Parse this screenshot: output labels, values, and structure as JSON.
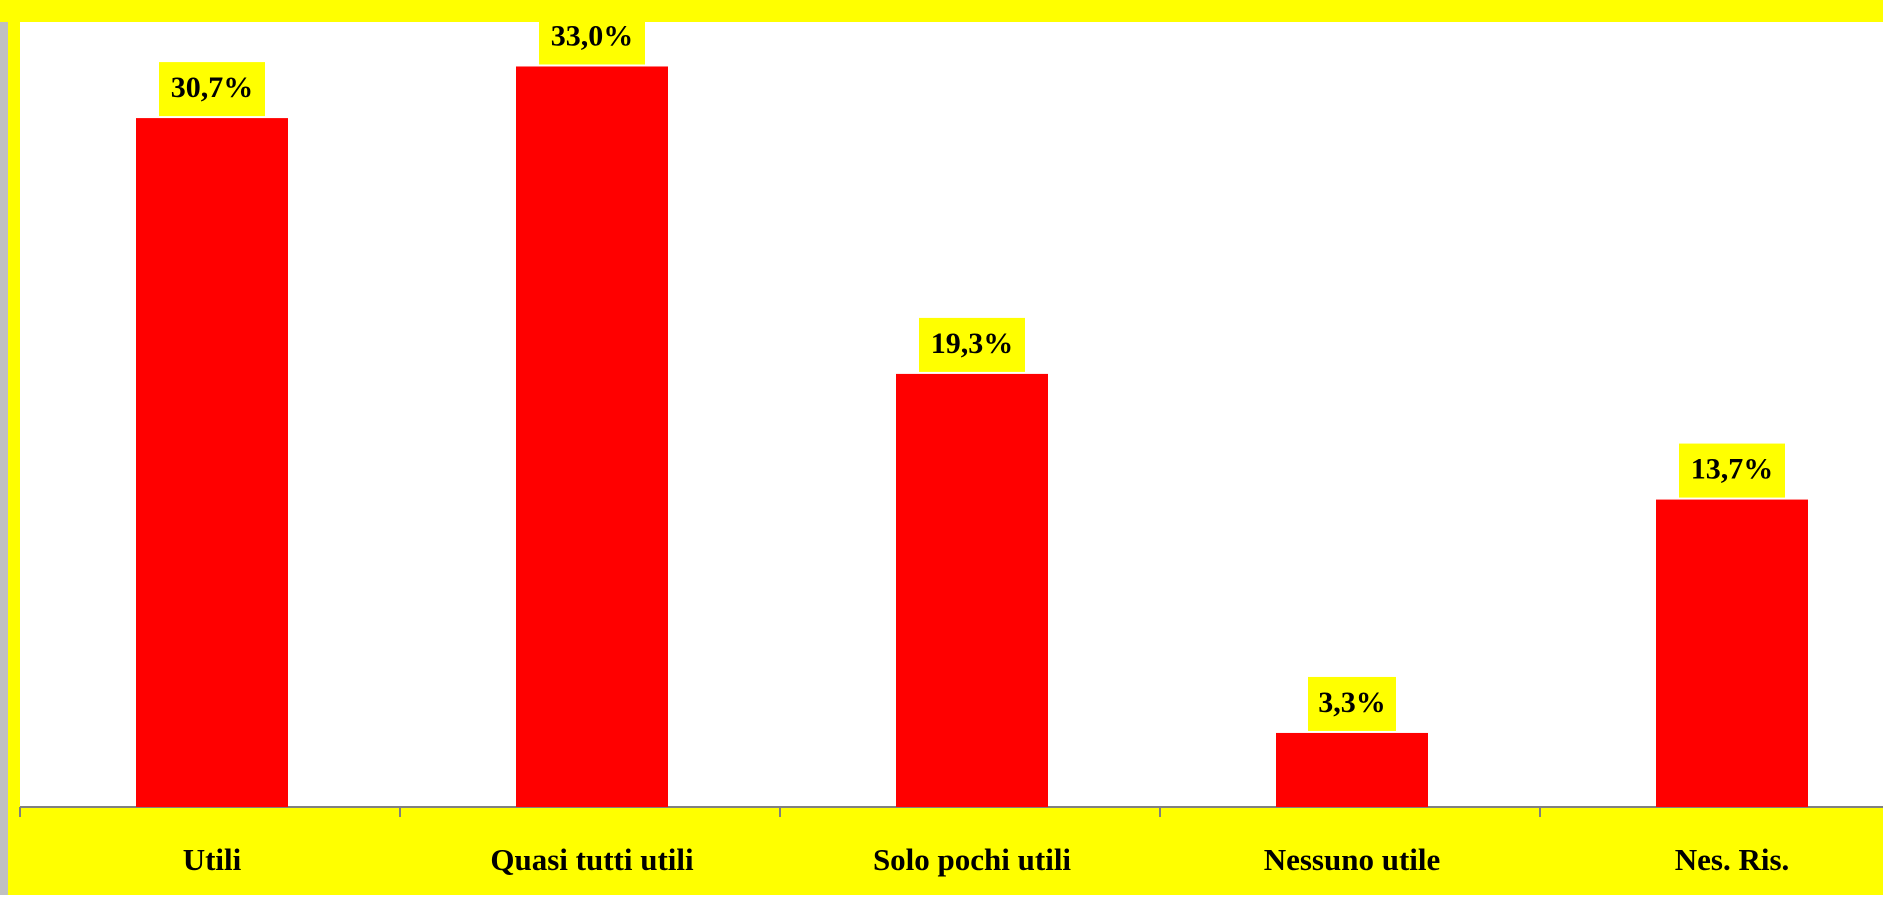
{
  "chart_data": {
    "type": "bar",
    "categories": [
      "Utili",
      "Quasi tutti utili",
      "Solo pochi utili",
      "Nessuno utile",
      "Nes. Ris."
    ],
    "values": [
      30.7,
      33.0,
      19.3,
      3.3,
      13.7
    ],
    "value_labels": [
      "30,7%",
      "33,0%",
      "19,3%",
      "3,3%",
      "13,7%"
    ],
    "ylim": [
      0,
      36
    ],
    "grid": false,
    "legend": "none",
    "colors": {
      "bar": "#ff0000",
      "label_background": "#ffff00",
      "axis_band": "#ffff00",
      "plot_background": "#ffffff",
      "frame": "#ffff00",
      "outer": "#c0c0c0",
      "axis_line": "#808080",
      "text": "#000000"
    }
  }
}
